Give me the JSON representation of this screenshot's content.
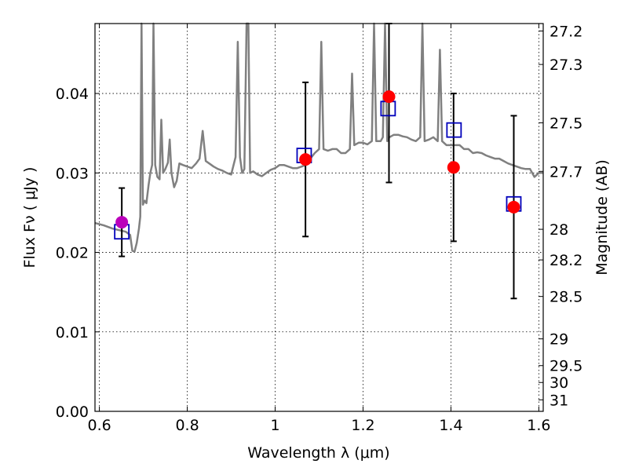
{
  "chart_data": {
    "type": "scatter",
    "title": "",
    "xlabel": "Wavelength  λ (μm)",
    "ylabel": "Flux  Fν  ( μJy )",
    "ylabel_right": "Magnitude (AB)",
    "xlim": [
      0.59,
      1.61
    ],
    "ylim": [
      0.0,
      0.0488
    ],
    "grid": true,
    "x_ticks": [
      {
        "value": 0.6,
        "label": "0.6"
      },
      {
        "value": 0.8,
        "label": "0.8"
      },
      {
        "value": 1.0,
        "label": "1"
      },
      {
        "value": 1.2,
        "label": "1.2"
      },
      {
        "value": 1.4,
        "label": "1.4"
      },
      {
        "value": 1.6,
        "label": "1.6"
      }
    ],
    "y_ticks": [
      {
        "value": 0.0,
        "label": "0.00"
      },
      {
        "value": 0.01,
        "label": "0.01"
      },
      {
        "value": 0.02,
        "label": "0.02"
      },
      {
        "value": 0.03,
        "label": "0.03"
      },
      {
        "value": 0.04,
        "label": "0.04"
      }
    ],
    "mag_ticks": [
      {
        "value": 27.2,
        "label": "27.2"
      },
      {
        "value": 27.3,
        "label": "27.3"
      },
      {
        "value": 27.5,
        "label": "27.5"
      },
      {
        "value": 27.7,
        "label": "27.7"
      },
      {
        "value": 28.0,
        "label": "28"
      },
      {
        "value": 28.2,
        "label": "28.2"
      },
      {
        "value": 28.5,
        "label": "28.5"
      },
      {
        "value": 29.0,
        "label": "29"
      },
      {
        "value": 29.5,
        "label": "29.5"
      },
      {
        "value": 30.0,
        "label": "30"
      },
      {
        "value": 31.0,
        "label": "31"
      }
    ],
    "colors": {
      "spectrum": "#808080",
      "observed": "#ff0000",
      "model": "#0000bb",
      "highlight": "#bb00bb",
      "errorbar": "#000000"
    },
    "spectrum": [
      [
        0.59,
        0.0237
      ],
      [
        0.61,
        0.0234
      ],
      [
        0.63,
        0.023
      ],
      [
        0.645,
        0.0228
      ],
      [
        0.66,
        0.0226
      ],
      [
        0.67,
        0.0222
      ],
      [
        0.675,
        0.0202
      ],
      [
        0.68,
        0.0201
      ],
      [
        0.685,
        0.0212
      ],
      [
        0.69,
        0.023
      ],
      [
        0.693,
        0.0245
      ],
      [
        0.696,
        0.06
      ],
      [
        0.699,
        0.026
      ],
      [
        0.703,
        0.0265
      ],
      [
        0.707,
        0.0262
      ],
      [
        0.712,
        0.0285
      ],
      [
        0.716,
        0.03
      ],
      [
        0.72,
        0.031
      ],
      [
        0.723,
        0.06
      ],
      [
        0.727,
        0.031
      ],
      [
        0.732,
        0.0295
      ],
      [
        0.737,
        0.0292
      ],
      [
        0.741,
        0.0367
      ],
      [
        0.745,
        0.03
      ],
      [
        0.75,
        0.0305
      ],
      [
        0.756,
        0.0313
      ],
      [
        0.76,
        0.0342
      ],
      [
        0.764,
        0.03
      ],
      [
        0.77,
        0.0282
      ],
      [
        0.776,
        0.029
      ],
      [
        0.782,
        0.0312
      ],
      [
        0.79,
        0.031
      ],
      [
        0.8,
        0.0308
      ],
      [
        0.81,
        0.0306
      ],
      [
        0.82,
        0.0312
      ],
      [
        0.828,
        0.0318
      ],
      [
        0.835,
        0.0353
      ],
      [
        0.842,
        0.0315
      ],
      [
        0.85,
        0.0312
      ],
      [
        0.86,
        0.0308
      ],
      [
        0.87,
        0.0305
      ],
      [
        0.88,
        0.0303
      ],
      [
        0.89,
        0.03
      ],
      [
        0.9,
        0.0298
      ],
      [
        0.91,
        0.032
      ],
      [
        0.915,
        0.0465
      ],
      [
        0.92,
        0.032
      ],
      [
        0.925,
        0.03
      ],
      [
        0.93,
        0.0305
      ],
      [
        0.935,
        0.06
      ],
      [
        0.939,
        0.06
      ],
      [
        0.943,
        0.03
      ],
      [
        0.95,
        0.0302
      ],
      [
        0.96,
        0.0298
      ],
      [
        0.97,
        0.0296
      ],
      [
        0.98,
        0.03
      ],
      [
        0.99,
        0.0304
      ],
      [
        1.0,
        0.0306
      ],
      [
        1.01,
        0.031
      ],
      [
        1.02,
        0.031
      ],
      [
        1.03,
        0.0308
      ],
      [
        1.04,
        0.0306
      ],
      [
        1.05,
        0.0306
      ],
      [
        1.06,
        0.0308
      ],
      [
        1.07,
        0.031
      ],
      [
        1.08,
        0.0318
      ],
      [
        1.09,
        0.0325
      ],
      [
        1.1,
        0.033
      ],
      [
        1.105,
        0.0465
      ],
      [
        1.11,
        0.033
      ],
      [
        1.12,
        0.0328
      ],
      [
        1.13,
        0.033
      ],
      [
        1.14,
        0.033
      ],
      [
        1.15,
        0.0325
      ],
      [
        1.16,
        0.0325
      ],
      [
        1.17,
        0.033
      ],
      [
        1.175,
        0.0425
      ],
      [
        1.18,
        0.0335
      ],
      [
        1.19,
        0.0338
      ],
      [
        1.2,
        0.0338
      ],
      [
        1.21,
        0.0336
      ],
      [
        1.22,
        0.034
      ],
      [
        1.225,
        0.06
      ],
      [
        1.23,
        0.034
      ],
      [
        1.24,
        0.034
      ],
      [
        1.245,
        0.0345
      ],
      [
        1.25,
        0.06
      ],
      [
        1.255,
        0.034
      ],
      [
        1.26,
        0.0345
      ],
      [
        1.27,
        0.0348
      ],
      [
        1.28,
        0.0348
      ],
      [
        1.29,
        0.0346
      ],
      [
        1.3,
        0.0345
      ],
      [
        1.31,
        0.0342
      ],
      [
        1.32,
        0.034
      ],
      [
        1.33,
        0.0345
      ],
      [
        1.335,
        0.06
      ],
      [
        1.34,
        0.034
      ],
      [
        1.35,
        0.0342
      ],
      [
        1.36,
        0.0345
      ],
      [
        1.37,
        0.034
      ],
      [
        1.375,
        0.0455
      ],
      [
        1.38,
        0.034
      ],
      [
        1.39,
        0.0335
      ],
      [
        1.4,
        0.0335
      ],
      [
        1.41,
        0.0335
      ],
      [
        1.42,
        0.0335
      ],
      [
        1.43,
        0.033
      ],
      [
        1.44,
        0.033
      ],
      [
        1.45,
        0.0325
      ],
      [
        1.46,
        0.0326
      ],
      [
        1.47,
        0.0325
      ],
      [
        1.48,
        0.0322
      ],
      [
        1.49,
        0.032
      ],
      [
        1.5,
        0.0318
      ],
      [
        1.51,
        0.0318
      ],
      [
        1.52,
        0.0315
      ],
      [
        1.53,
        0.0312
      ],
      [
        1.54,
        0.031
      ],
      [
        1.55,
        0.0308
      ],
      [
        1.56,
        0.0306
      ],
      [
        1.57,
        0.0305
      ],
      [
        1.58,
        0.0305
      ],
      [
        1.59,
        0.0295
      ],
      [
        1.6,
        0.03
      ],
      [
        1.61,
        0.03
      ]
    ],
    "observed": [
      {
        "x": 1.069,
        "y": 0.0317,
        "err_lo": 0.0097,
        "err_hi": 0.0097
      },
      {
        "x": 1.259,
        "y": 0.0396,
        "err_lo": 0.0108,
        "err_hi": 0.0108
      },
      {
        "x": 1.406,
        "y": 0.0307,
        "err_lo": 0.0093,
        "err_hi": 0.0093
      },
      {
        "x": 1.543,
        "y": 0.0257,
        "err_lo": 0.0115,
        "err_hi": 0.0115
      }
    ],
    "highlight_point": {
      "x": 0.651,
      "y": 0.0238,
      "err_lo": 0.0043,
      "err_hi": 0.0043
    },
    "model_points": [
      {
        "x": 0.651,
        "y": 0.0226
      },
      {
        "x": 1.066,
        "y": 0.0322
      },
      {
        "x": 1.257,
        "y": 0.0381
      },
      {
        "x": 1.407,
        "y": 0.0354
      },
      {
        "x": 1.543,
        "y": 0.0261
      }
    ]
  }
}
